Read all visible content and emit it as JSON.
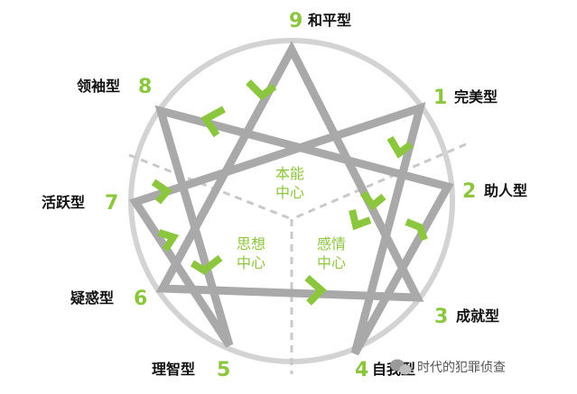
{
  "colors": {
    "accent": "#8cc63f",
    "figure_line": "#a9a9a9",
    "circle": "#d3d3d3",
    "text": "#111111"
  },
  "types": [
    {
      "number": "9",
      "name": "和平型"
    },
    {
      "number": "1",
      "name": "完美型"
    },
    {
      "number": "2",
      "name": "助人型"
    },
    {
      "number": "3",
      "name": "成就型"
    },
    {
      "number": "4",
      "name": "自我型"
    },
    {
      "number": "5",
      "name": "理智型"
    },
    {
      "number": "6",
      "name": "疑惑型"
    },
    {
      "number": "7",
      "name": "活跃型"
    },
    {
      "number": "8",
      "name": "领袖型"
    }
  ],
  "centers": {
    "instinct": {
      "line1": "本能",
      "line2": "中心"
    },
    "thinking": {
      "line1": "思想",
      "line2": "中心"
    },
    "feeling": {
      "line1": "感情",
      "line2": "中心"
    }
  },
  "watermark": {
    "text": "时代的犯罪侦查",
    "icon": "wechat-icon"
  }
}
